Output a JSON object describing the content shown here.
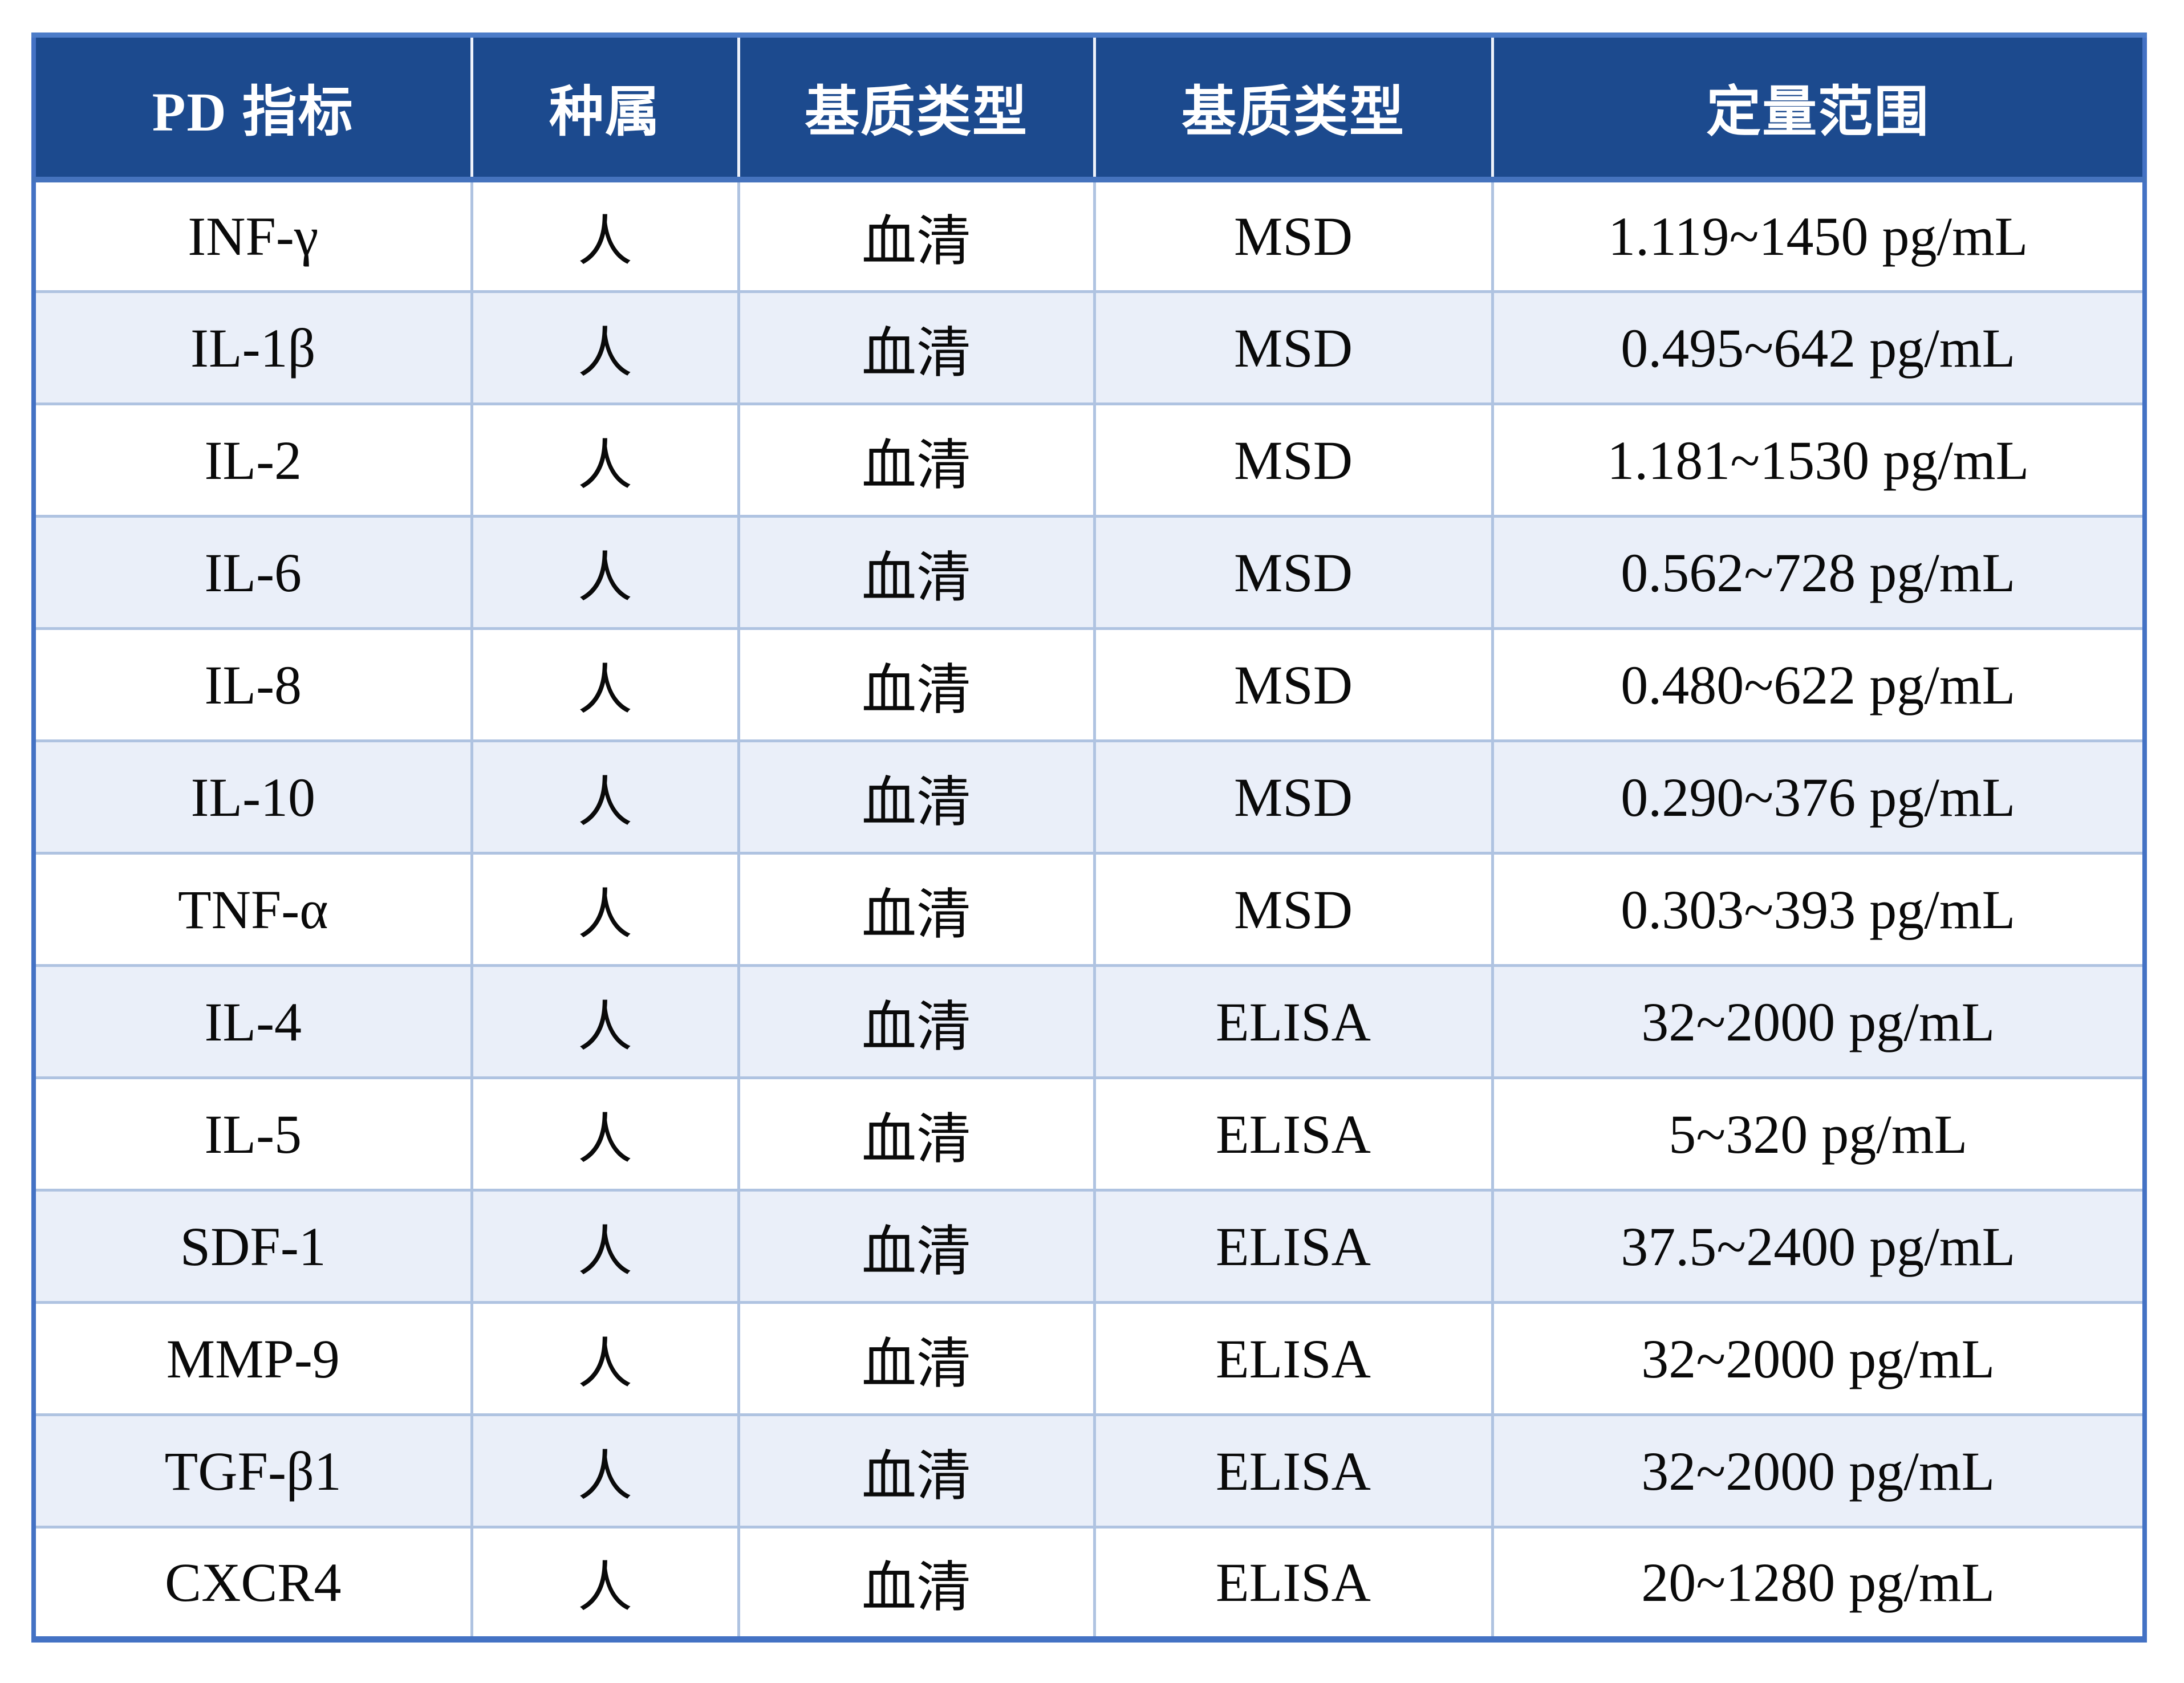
{
  "table": {
    "headers": [
      "PD 指标",
      "种属",
      "基质类型",
      "基质类型",
      "定量范围"
    ],
    "rows": [
      [
        "INF-γ",
        "人",
        "血清",
        "MSD",
        "1.119~1450 pg/mL"
      ],
      [
        "IL-1β",
        "人",
        "血清",
        "MSD",
        "0.495~642 pg/mL"
      ],
      [
        "IL-2",
        "人",
        "血清",
        "MSD",
        "1.181~1530 pg/mL"
      ],
      [
        "IL-6",
        "人",
        "血清",
        "MSD",
        "0.562~728 pg/mL"
      ],
      [
        "IL-8",
        "人",
        "血清",
        "MSD",
        "0.480~622 pg/mL"
      ],
      [
        "IL-10",
        "人",
        "血清",
        "MSD",
        "0.290~376 pg/mL"
      ],
      [
        "TNF-α",
        "人",
        "血清",
        "MSD",
        "0.303~393 pg/mL"
      ],
      [
        "IL-4",
        "人",
        "血清",
        "ELISA",
        "32~2000 pg/mL"
      ],
      [
        "IL-5",
        "人",
        "血清",
        "ELISA",
        "5~320 pg/mL"
      ],
      [
        "SDF-1",
        "人",
        "血清",
        "ELISA",
        "37.5~2400 pg/mL"
      ],
      [
        "MMP-9",
        "人",
        "血清",
        "ELISA",
        "32~2000 pg/mL"
      ],
      [
        "TGF-β1",
        "人",
        "血清",
        "ELISA",
        "32~2000 pg/mL"
      ],
      [
        "CXCR4",
        "人",
        "血清",
        "ELISA",
        "20~1280 pg/mL"
      ]
    ],
    "colors": {
      "header_background": "#1C4A8E",
      "header_text": "#FFFFFF",
      "outer_border": "#4472C4",
      "inner_border": "#AFC3E1",
      "alternate_row_background": "#EAEFF9",
      "row_background": "#FFFFFF",
      "body_text": "#000000"
    }
  }
}
